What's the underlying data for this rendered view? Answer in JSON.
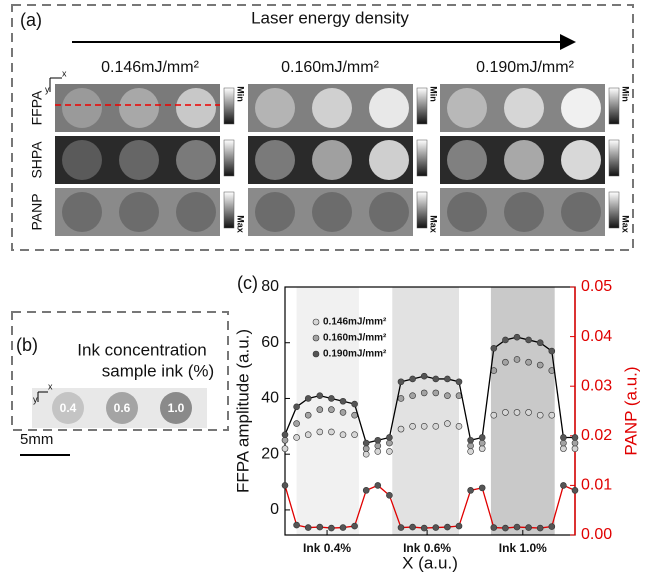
{
  "panel_a": {
    "label": "(a)",
    "arrow_label": "Laser energy density",
    "energies": [
      "0.146mJ/mm²",
      "0.160mJ/mm²",
      "0.190mJ/mm²"
    ],
    "rows": [
      "FFPA",
      "SHPA",
      "PANP"
    ],
    "scale_min": "Min",
    "scale_max": "Max",
    "axis_x": "x",
    "axis_y": "y"
  },
  "panel_b": {
    "label": "(b)",
    "title": [
      "Ink concentration",
      "sample ink (%)"
    ],
    "samples": [
      "0.4",
      "0.6",
      "1.0"
    ],
    "axis_x": "x",
    "axis_y": "y",
    "scale_bar": "5mm"
  },
  "chart_data": {
    "type": "scatter",
    "label": "(c)",
    "xlabel": "X (a.u.)",
    "ylabel": "FFPA amplitude (a.u.)",
    "y2label": "PANP (a.u.)",
    "xlim": [
      0,
      100
    ],
    "xticks": [
      {
        "value": 14.5,
        "label": "Ink 0.4%"
      },
      {
        "value": 49,
        "label": "Ink 0.6%"
      },
      {
        "value": 82,
        "label": "Ink 1.0%"
      }
    ],
    "shaded_regions": [
      [
        4,
        25.5
      ],
      [
        37,
        60
      ],
      [
        71,
        93
      ]
    ],
    "ylim": [
      -9,
      80
    ],
    "yticks": [
      0,
      20,
      40,
      60,
      80
    ],
    "y2lim": [
      0,
      0.05
    ],
    "y2ticks": [
      {
        "value": 0,
        "label": "0.00"
      },
      {
        "value": 0.01,
        "label": "0.01"
      },
      {
        "value": 0.02,
        "label": "0.02"
      },
      {
        "value": 0.03,
        "label": "0.03"
      },
      {
        "value": 0.04,
        "label": "0.04"
      },
      {
        "value": 0.05,
        "label": "0.05"
      }
    ],
    "x": [
      0,
      4,
      8,
      12,
      16,
      20,
      24,
      28,
      32,
      36,
      40,
      44,
      48,
      52,
      56,
      60,
      64,
      68,
      72,
      76,
      80,
      84,
      88,
      92,
      96,
      100
    ],
    "series": [
      {
        "name": "0.146mJ/mm²",
        "color": "#d6d6d6",
        "values": [
          22,
          26,
          27,
          28,
          28,
          27,
          27,
          20,
          21,
          21,
          29,
          30,
          30,
          30,
          31,
          30,
          21,
          22,
          34,
          35,
          35,
          35,
          34,
          34,
          22,
          22
        ]
      },
      {
        "name": "0.160mJ/mm²",
        "color": "#a3a3a3",
        "values": [
          25,
          31,
          34,
          36,
          36,
          35,
          34,
          22,
          23,
          24,
          40,
          41,
          42,
          42,
          41,
          41,
          23,
          24,
          50,
          53,
          54,
          53,
          52,
          50,
          24,
          24
        ]
      },
      {
        "name": "0.190mJ/mm²",
        "color": "#555555",
        "line": "#000000",
        "values": [
          27,
          37,
          40,
          41,
          40,
          39,
          38,
          24,
          25,
          26,
          46,
          47,
          48,
          47,
          47,
          46,
          25,
          26,
          58,
          61,
          62,
          61,
          60,
          57,
          26,
          26
        ]
      },
      {
        "axis": "y2",
        "color": "#555555",
        "line": "#e00000",
        "values": [
          0.01,
          0.002,
          0.0015,
          0.0016,
          0.0014,
          0.0015,
          0.0018,
          0.009,
          0.01,
          0.008,
          0.0015,
          0.0016,
          0.0014,
          0.0015,
          0.0016,
          0.0018,
          0.009,
          0.0095,
          0.0015,
          0.0014,
          0.0016,
          0.0015,
          0.0014,
          0.0017,
          0.01,
          0.009
        ]
      }
    ],
    "y2color": "#e00000"
  }
}
